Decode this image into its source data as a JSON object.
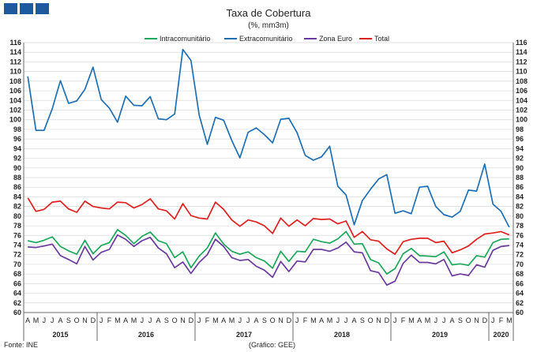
{
  "logo": {
    "icon": "ine-blue-squares-logo",
    "color": "#1e5aa0"
  },
  "chart_data": {
    "type": "line",
    "title": "Taxa de Cobertura",
    "subtitle": "(%, mm3m)",
    "ylim": [
      60,
      116
    ],
    "yticks": [
      60,
      62,
      64,
      66,
      68,
      70,
      72,
      74,
      76,
      78,
      80,
      82,
      84,
      86,
      88,
      90,
      92,
      94,
      96,
      98,
      100,
      102,
      104,
      106,
      108,
      110,
      112,
      114,
      116
    ],
    "grid": true,
    "legend_placement": "top-center",
    "x_month_labels": [
      "A",
      "M",
      "J",
      "J",
      "A",
      "S",
      "O",
      "N",
      "D",
      "J",
      "F",
      "M",
      "A",
      "M",
      "J",
      "J",
      "A",
      "S",
      "O",
      "N",
      "D",
      "J",
      "F",
      "M",
      "A",
      "M",
      "J",
      "J",
      "A",
      "S",
      "O",
      "N",
      "D",
      "J",
      "F",
      "M",
      "A",
      "M",
      "J",
      "J",
      "A",
      "S",
      "O",
      "N",
      "D",
      "J",
      "F",
      "M",
      "A",
      "M",
      "J",
      "J",
      "A",
      "S",
      "O",
      "N",
      "D",
      "J",
      "F",
      "M"
    ],
    "x_year_groups": [
      {
        "label": "2015",
        "start": 0,
        "end": 8
      },
      {
        "label": "2016",
        "start": 9,
        "end": 20
      },
      {
        "label": "2017",
        "start": 21,
        "end": 32
      },
      {
        "label": "2018",
        "start": 33,
        "end": 44
      },
      {
        "label": "2019",
        "start": 45,
        "end": 56
      },
      {
        "label": "2020",
        "start": 57,
        "end": 59
      }
    ],
    "series": [
      {
        "name": "Intracomunitário",
        "color": "#1aa85a",
        "values": [
          74.9,
          74.5,
          75.0,
          75.7,
          73.7,
          72.8,
          72.1,
          75.0,
          72.2,
          73.9,
          74.5,
          77.2,
          76.0,
          74.3,
          75.8,
          76.7,
          74.9,
          74.3,
          71.4,
          72.6,
          69.3,
          71.7,
          73.4,
          76.5,
          74.2,
          72.7,
          72.1,
          72.6,
          71.4,
          70.7,
          69.2,
          72.7,
          70.6,
          72.7,
          72.6,
          75.2,
          74.7,
          74.4,
          75.3,
          76.8,
          74.2,
          74.3,
          71.0,
          70.3,
          68.0,
          69.1,
          72.2,
          73.3,
          71.8,
          71.7,
          71.6,
          72.6,
          69.9,
          70.1,
          69.8,
          71.8,
          71.5,
          74.5,
          75.2,
          75.3
        ]
      },
      {
        "name": "Extracomunitário",
        "color": "#1f6fb4",
        "values": [
          109.0,
          97.8,
          97.8,
          102.3,
          108.1,
          103.4,
          103.9,
          106.3,
          110.9,
          104.2,
          102.4,
          99.5,
          104.9,
          103.0,
          102.9,
          104.8,
          100.2,
          100.0,
          101.2,
          114.6,
          112.3,
          101.0,
          94.9,
          100.5,
          99.9,
          95.7,
          92.1,
          97.4,
          98.3,
          96.9,
          95.2,
          100.1,
          100.3,
          97.3,
          92.6,
          91.6,
          92.3,
          94.5,
          86.2,
          84.4,
          78.2,
          83.2,
          85.6,
          87.7,
          88.6,
          80.6,
          81.1,
          80.5,
          86.0,
          86.2,
          82.0,
          80.3,
          79.8,
          81.0,
          85.4,
          85.2,
          90.8,
          82.5,
          81.0,
          77.7
        ]
      },
      {
        "name": "Zona Euro",
        "color": "#6b3a9e",
        "values": [
          73.6,
          73.5,
          73.8,
          74.2,
          71.8,
          71.0,
          70.1,
          73.7,
          70.9,
          72.5,
          73.1,
          76.1,
          75.2,
          73.7,
          74.9,
          75.6,
          73.4,
          72.2,
          69.3,
          70.5,
          68.1,
          70.4,
          72.0,
          75.2,
          73.7,
          71.4,
          70.8,
          71.0,
          69.6,
          68.8,
          67.3,
          70.6,
          68.5,
          70.7,
          70.5,
          73.1,
          73.1,
          72.7,
          73.4,
          74.6,
          72.6,
          72.4,
          68.7,
          68.3,
          65.7,
          66.5,
          70.2,
          71.9,
          70.4,
          70.4,
          70.1,
          71.0,
          67.6,
          68.0,
          67.7,
          69.9,
          69.4,
          72.9,
          73.7,
          73.9
        ]
      },
      {
        "name": "Total",
        "color": "#e0201f",
        "values": [
          83.8,
          81.0,
          81.4,
          82.9,
          83.1,
          81.5,
          80.8,
          83.1,
          82.0,
          81.7,
          81.5,
          82.9,
          82.8,
          81.7,
          82.4,
          83.6,
          81.5,
          81.1,
          79.4,
          82.6,
          80.1,
          79.6,
          79.4,
          82.9,
          81.4,
          79.2,
          77.9,
          79.2,
          78.8,
          78.0,
          76.4,
          79.6,
          77.9,
          79.2,
          78.0,
          79.5,
          79.3,
          79.4,
          78.4,
          79.0,
          75.6,
          76.8,
          75.1,
          74.8,
          73.2,
          72.1,
          74.7,
          75.2,
          75.4,
          75.4,
          74.5,
          74.8,
          72.4,
          73.0,
          73.8,
          75.2,
          76.3,
          76.5,
          76.8,
          76.1
        ]
      }
    ]
  },
  "footer": {
    "source": "Fonte: INE",
    "credit": "(Gráfico: GEE)"
  }
}
